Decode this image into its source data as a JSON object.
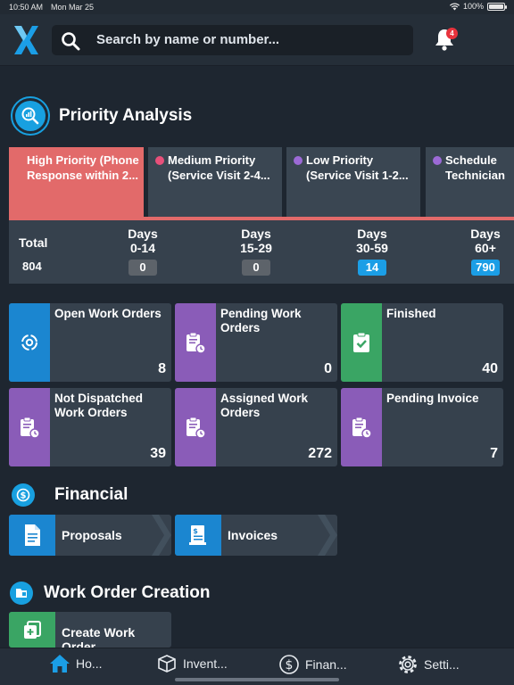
{
  "status_bar": {
    "time": "10:50 AM",
    "date": "Mon Mar 25",
    "battery": "100%"
  },
  "search": {
    "placeholder": "Search by name or number..."
  },
  "notifications": {
    "count": "4"
  },
  "priority": {
    "title": "Priority Analysis",
    "tabs": [
      {
        "line1": "High Priority (Phone",
        "line2": "Response within 2...",
        "color": "#e26a6a",
        "active": true
      },
      {
        "line1": "Medium Priority",
        "line2": "(Service Visit 2-4...",
        "color": "#e8507a"
      },
      {
        "line1": "Low Priority",
        "line2": "(Service Visit 1-2...",
        "color": "#9c6ad6"
      },
      {
        "line1": "Schedule",
        "line2": "Technician",
        "color": "#9c6ad6"
      }
    ],
    "total_label": "Total",
    "total_value": "804",
    "buckets": [
      {
        "label1": "Days",
        "label2": "0-14",
        "value": "0"
      },
      {
        "label1": "Days",
        "label2": "15-29",
        "value": "0"
      },
      {
        "label1": "Days",
        "label2": "30-59",
        "value": "14"
      },
      {
        "label1": "Days",
        "label2": "60+",
        "value": "790"
      }
    ]
  },
  "cards": [
    {
      "label": "Open Work Orders",
      "count": "8",
      "color": "#1b86d0",
      "icon": "gear-cycle-icon"
    },
    {
      "label": "Pending Work Orders",
      "count": "0",
      "color": "#8a5cb8",
      "icon": "clipboard-clock-icon"
    },
    {
      "label": "Finished",
      "count": "40",
      "color": "#3aa564",
      "icon": "clipboard-check-icon"
    },
    {
      "label": "Not Dispatched Work Orders",
      "count": "39",
      "color": "#8a5cb8",
      "icon": "clipboard-clock-icon"
    },
    {
      "label": "Assigned Work Orders",
      "count": "272",
      "color": "#8a5cb8",
      "icon": "clipboard-clock-icon"
    },
    {
      "label": "Pending Invoice",
      "count": "7",
      "color": "#8a5cb8",
      "icon": "clipboard-clock-icon"
    }
  ],
  "financial": {
    "title": "Financial",
    "buttons": [
      {
        "label": "Proposals",
        "icon": "document-icon"
      },
      {
        "label": "Invoices",
        "icon": "invoice-icon"
      }
    ]
  },
  "creation": {
    "title": "Work Order Creation",
    "button": "Create Work Order"
  },
  "tabbar": [
    {
      "label": "Ho...",
      "icon": "home-icon"
    },
    {
      "label": "Invent...",
      "icon": "box-icon"
    },
    {
      "label": "Finan...",
      "icon": "dollar-icon"
    },
    {
      "label": "Setti...",
      "icon": "gear-icon"
    }
  ]
}
